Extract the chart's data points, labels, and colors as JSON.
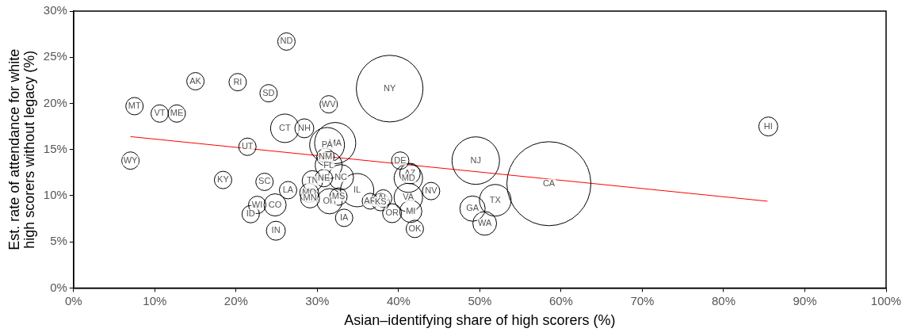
{
  "chart_data": {
    "type": "bubble",
    "xlabel": "Asian–identifying share of high scorers (%)",
    "ylabel": "Est. rate of attendance for white\nhigh scorers without legacy (%)",
    "xlim": [
      0,
      100
    ],
    "xticks": [
      {
        "value": 0,
        "label": "0%"
      },
      {
        "value": 10,
        "label": "10%"
      },
      {
        "value": 20,
        "label": "20%"
      },
      {
        "value": 30,
        "label": "30%"
      },
      {
        "value": 40,
        "label": "40%"
      },
      {
        "value": 50,
        "label": "50%"
      },
      {
        "value": 60,
        "label": "60%"
      },
      {
        "value": 70,
        "label": "70%"
      },
      {
        "value": 80,
        "label": "80%"
      },
      {
        "value": 90,
        "label": "90%"
      },
      {
        "value": 100,
        "label": "100%"
      }
    ],
    "ylim": [
      0,
      30
    ],
    "yticks": [
      {
        "value": 0,
        "label": "0%"
      },
      {
        "value": 5,
        "label": "5%"
      },
      {
        "value": 10,
        "label": "10%"
      },
      {
        "value": 15,
        "label": "15%"
      },
      {
        "value": 20,
        "label": "20%"
      },
      {
        "value": 25,
        "label": "25%"
      },
      {
        "value": 30,
        "label": "30%"
      }
    ],
    "grid": false,
    "legend": false,
    "series": [
      {
        "type": "bubble",
        "color": "#000000",
        "x": [
          26.2,
          15.0,
          20.2,
          24.0,
          7.5,
          10.6,
          12.7,
          31.4,
          38.9,
          26.0,
          28.4,
          32.2,
          31.2,
          21.4,
          31.0,
          31.4,
          7.0,
          18.4,
          23.5,
          29.4,
          30.8,
          32.9,
          26.4,
          29.0,
          29.1,
          31.5,
          32.6,
          34.9,
          36.5,
          38.1,
          37.8,
          22.6,
          24.8,
          21.8,
          33.3,
          24.9,
          40.2,
          41.4,
          41.2,
          41.2,
          44.0,
          39.2,
          41.5,
          42.0,
          49.5,
          49.1,
          51.9,
          50.6,
          58.5,
          85.5
        ],
        "values": [
          26.7,
          22.4,
          22.3,
          21.1,
          19.7,
          18.9,
          18.9,
          19.9,
          21.6,
          17.3,
          17.3,
          15.7,
          15.5,
          15.3,
          14.2,
          13.3,
          13.8,
          11.7,
          11.5,
          11.6,
          11.9,
          12.0,
          10.6,
          10.3,
          9.7,
          9.4,
          9.9,
          10.6,
          9.4,
          9.7,
          9.3,
          9.0,
          9.0,
          8.0,
          7.6,
          6.2,
          13.8,
          12.4,
          11.9,
          9.8,
          10.5,
          8.1,
          8.3,
          6.4,
          13.8,
          8.6,
          9.5,
          7.0,
          11.3,
          17.5
        ],
        "sizes": [
          0.043,
          0.043,
          0.043,
          0.043,
          0.043,
          0.043,
          0.043,
          0.043,
          0.63,
          0.115,
          0.051,
          0.24,
          0.172,
          0.043,
          0.043,
          0.103,
          0.043,
          0.043,
          0.043,
          0.06,
          0.043,
          0.091,
          0.043,
          0.051,
          0.051,
          0.091,
          0.043,
          0.157,
          0.036,
          0.043,
          0.043,
          0.043,
          0.07,
          0.043,
          0.043,
          0.051,
          0.043,
          0.06,
          0.115,
          0.115,
          0.043,
          0.051,
          0.07,
          0.043,
          0.32,
          0.091,
          0.142,
          0.08,
          1,
          0.051
        ]
      },
      {
        "type": "line",
        "color": "#ff0000",
        "x": [
          7.0,
          85.4
        ],
        "values": [
          16.4,
          9.4
        ]
      }
    ],
    "annotations": [
      {
        "text": "ND",
        "x": 26.2,
        "y": 26.7
      },
      {
        "text": "AK",
        "x": 15.0,
        "y": 22.4
      },
      {
        "text": "RI",
        "x": 20.2,
        "y": 22.3
      },
      {
        "text": "SD",
        "x": 24.0,
        "y": 21.1
      },
      {
        "text": "MT",
        "x": 7.5,
        "y": 19.7
      },
      {
        "text": "VT",
        "x": 10.6,
        "y": 18.9
      },
      {
        "text": "ME",
        "x": 12.7,
        "y": 18.9
      },
      {
        "text": "WV",
        "x": 31.4,
        "y": 19.9
      },
      {
        "text": "NY",
        "x": 38.9,
        "y": 21.6
      },
      {
        "text": "CT",
        "x": 26.0,
        "y": 17.3
      },
      {
        "text": "NH",
        "x": 28.4,
        "y": 17.3
      },
      {
        "text": "MA",
        "x": 32.2,
        "y": 15.7
      },
      {
        "text": "PA",
        "x": 31.2,
        "y": 15.5
      },
      {
        "text": "UT",
        "x": 21.4,
        "y": 15.3
      },
      {
        "text": "NM",
        "x": 31.0,
        "y": 14.2
      },
      {
        "text": "FL",
        "x": 31.4,
        "y": 13.3
      },
      {
        "text": "WY",
        "x": 7.0,
        "y": 13.8
      },
      {
        "text": "KY",
        "x": 18.4,
        "y": 11.7
      },
      {
        "text": "SC",
        "x": 23.5,
        "y": 11.5
      },
      {
        "text": "TN",
        "x": 29.4,
        "y": 11.6
      },
      {
        "text": "NE",
        "x": 30.8,
        "y": 11.9
      },
      {
        "text": "NC",
        "x": 32.9,
        "y": 12.0
      },
      {
        "text": "LA",
        "x": 26.4,
        "y": 10.6
      },
      {
        "text": "MO",
        "x": 29.0,
        "y": 10.3
      },
      {
        "text": "MN",
        "x": 29.1,
        "y": 9.7
      },
      {
        "text": "OH",
        "x": 31.5,
        "y": 9.4
      },
      {
        "text": "MS",
        "x": 32.6,
        "y": 9.9
      },
      {
        "text": "IL",
        "x": 34.9,
        "y": 10.6
      },
      {
        "text": "AR",
        "x": 36.5,
        "y": 9.4
      },
      {
        "text": "AL",
        "x": 38.1,
        "y": 9.7
      },
      {
        "text": "KS",
        "x": 37.8,
        "y": 9.3
      },
      {
        "text": "WI",
        "x": 22.6,
        "y": 9.0
      },
      {
        "text": "CO",
        "x": 24.8,
        "y": 9.0
      },
      {
        "text": "ID",
        "x": 21.8,
        "y": 8.0
      },
      {
        "text": "IA",
        "x": 33.3,
        "y": 7.6
      },
      {
        "text": "IN",
        "x": 24.9,
        "y": 6.2
      },
      {
        "text": "DE",
        "x": 40.2,
        "y": 13.8
      },
      {
        "text": "AZ",
        "x": 41.4,
        "y": 12.4
      },
      {
        "text": "MD",
        "x": 41.2,
        "y": 11.9
      },
      {
        "text": "VA",
        "x": 41.2,
        "y": 9.8
      },
      {
        "text": "NV",
        "x": 44.0,
        "y": 10.5
      },
      {
        "text": "OR",
        "x": 39.2,
        "y": 8.1
      },
      {
        "text": "MI",
        "x": 41.5,
        "y": 8.3
      },
      {
        "text": "OK",
        "x": 42.0,
        "y": 6.4
      },
      {
        "text": "NJ",
        "x": 49.5,
        "y": 13.8
      },
      {
        "text": "GA",
        "x": 49.1,
        "y": 8.6
      },
      {
        "text": "TX",
        "x": 51.9,
        "y": 9.5
      },
      {
        "text": "WA",
        "x": 50.6,
        "y": 7.0
      },
      {
        "text": "CA",
        "x": 58.5,
        "y": 11.3
      },
      {
        "text": "HI",
        "x": 85.5,
        "y": 17.5
      }
    ]
  }
}
